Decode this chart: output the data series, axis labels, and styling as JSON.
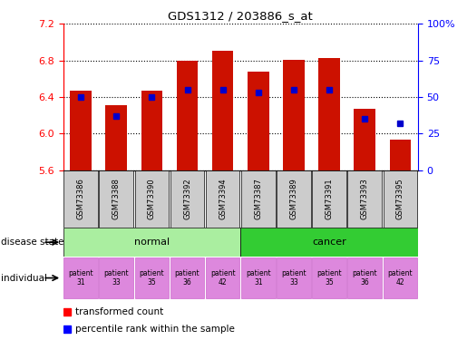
{
  "title": "GDS1312 / 203886_s_at",
  "samples": [
    "GSM73386",
    "GSM73388",
    "GSM73390",
    "GSM73392",
    "GSM73394",
    "GSM73387",
    "GSM73389",
    "GSM73391",
    "GSM73393",
    "GSM73395"
  ],
  "transformed_count": [
    6.47,
    6.31,
    6.47,
    6.8,
    6.9,
    6.68,
    6.81,
    6.83,
    6.27,
    5.93
  ],
  "percentile_rank": [
    50,
    37,
    50,
    55,
    55,
    53,
    55,
    55,
    35,
    32
  ],
  "ylim": [
    5.6,
    7.2
  ],
  "yticks": [
    5.6,
    6.0,
    6.4,
    6.8,
    7.2
  ],
  "right_yticks": [
    0,
    25,
    50,
    75,
    100
  ],
  "right_ylabels": [
    "0",
    "25",
    "50",
    "75",
    "100%"
  ],
  "bar_color": "#cc1100",
  "dot_color": "#0000cc",
  "bar_width": 0.6,
  "normal_color": "#aaeea0",
  "cancer_color": "#33cc33",
  "individual_color": "#dd88dd",
  "sample_box_color": "#cccccc",
  "ind_labels": [
    "patient\n31",
    "patient\n33",
    "patient\n35",
    "patient\n36",
    "patient\n42",
    "patient\n31",
    "patient\n33",
    "patient\n35",
    "patient\n36",
    "patient\n42"
  ]
}
